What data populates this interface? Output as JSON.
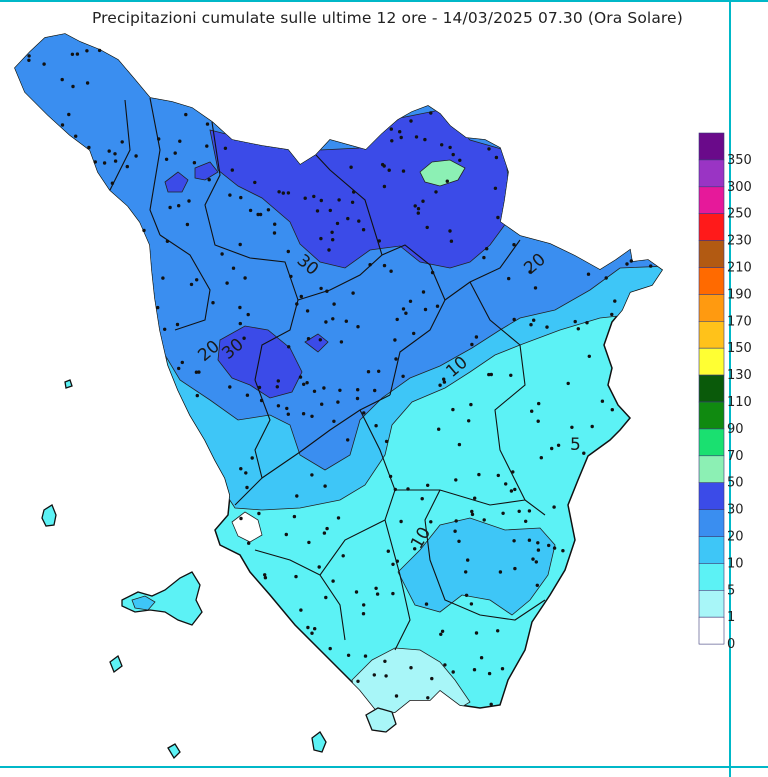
{
  "title": "Precipitazioni cumulate sulle ultime 12 ore - 14/03/2025 07.30 (Ora Solare)",
  "legend": {
    "classes": [
      {
        "label": "350",
        "color": "#6a0a8a"
      },
      {
        "label": "300",
        "color": "#9a34c4"
      },
      {
        "label": "250",
        "color": "#e6199a"
      },
      {
        "label": "230",
        "color": "#ff1a1a"
      },
      {
        "label": "210",
        "color": "#b25a12"
      },
      {
        "label": "190",
        "color": "#ff6a00"
      },
      {
        "label": "170",
        "color": "#ff9a10"
      },
      {
        "label": "150",
        "color": "#ffc21a"
      },
      {
        "label": "130",
        "color": "#ffff33"
      },
      {
        "label": "110",
        "color": "#0a5a0a"
      },
      {
        "label": "90",
        "color": "#108a10"
      },
      {
        "label": "70",
        "color": "#1ae070"
      },
      {
        "label": "50",
        "color": "#8cf0b4"
      },
      {
        "label": "30",
        "color": "#3b4be8"
      },
      {
        "label": "20",
        "color": "#3a8ef0"
      },
      {
        "label": "10",
        "color": "#3ec6f7"
      },
      {
        "label": "5",
        "color": "#5cf2f5"
      },
      {
        "label": "1",
        "color": "#a8f6f8"
      },
      {
        "label": "0",
        "color": "#ffffff"
      }
    ]
  },
  "contour_labels": {
    "c30_north": "30",
    "c20_east": "20",
    "c10_center": "10",
    "c5_east": "5",
    "c10_south": "10",
    "c30_west": "30",
    "c20_west": "20"
  }
}
